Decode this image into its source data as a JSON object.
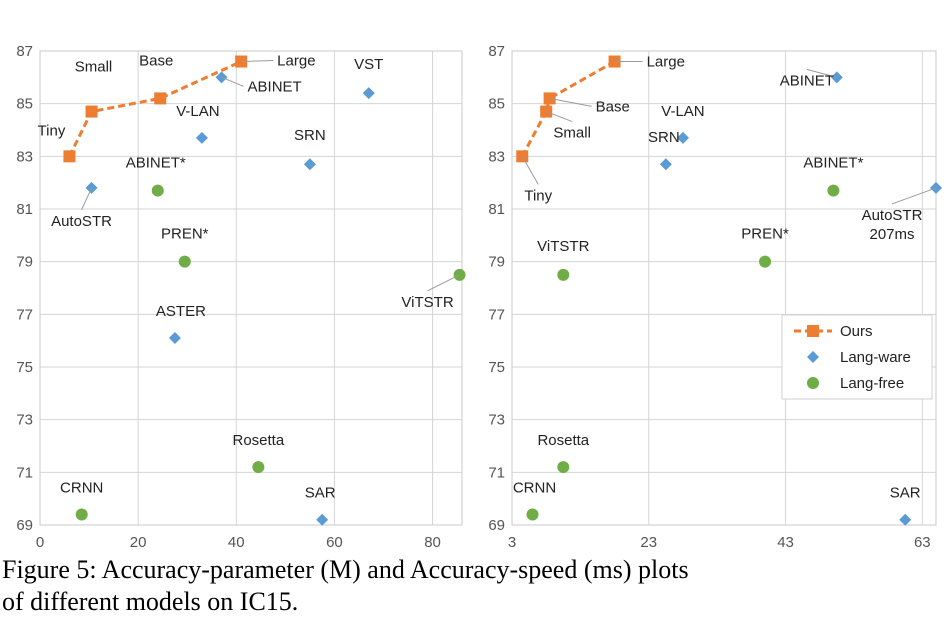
{
  "colors": {
    "ours": "#ED7D31",
    "lang_aware": "#5B9BD5",
    "lang_free": "#70AD47"
  },
  "chart_data": [
    {
      "type": "scatter",
      "title": "Accuracy-parameter (M)",
      "xlabel": "",
      "ylabel": "",
      "xlim": [
        0,
        86
      ],
      "ylim": [
        69,
        87
      ],
      "xticks": [
        0,
        20,
        40,
        60,
        80
      ],
      "yticks": [
        69,
        71,
        73,
        75,
        77,
        79,
        81,
        83,
        85,
        87
      ],
      "series": [
        {
          "name": "Ours",
          "marker": "square",
          "line": true,
          "points": [
            {
              "x": 6,
              "y": 83.0,
              "label": "Tiny"
            },
            {
              "x": 10.5,
              "y": 84.7,
              "label": "Small"
            },
            {
              "x": 24.5,
              "y": 85.2,
              "label": "Base"
            },
            {
              "x": 41,
              "y": 86.6,
              "label": "Large"
            }
          ]
        },
        {
          "name": "Lang-ware",
          "marker": "diamond",
          "line": false,
          "points": [
            {
              "x": 10.5,
              "y": 81.8,
              "label": "AutoSTR"
            },
            {
              "x": 37,
              "y": 86.0,
              "label": "ABINET"
            },
            {
              "x": 33,
              "y": 83.7,
              "label": "V-LAN"
            },
            {
              "x": 55,
              "y": 82.7,
              "label": "SRN"
            },
            {
              "x": 67,
              "y": 85.4,
              "label": "VST"
            },
            {
              "x": 27.5,
              "y": 76.1,
              "label": "ASTER"
            },
            {
              "x": 57.5,
              "y": 69.2,
              "label": "SAR"
            }
          ]
        },
        {
          "name": "Lang-free",
          "marker": "circle",
          "line": false,
          "points": [
            {
              "x": 24,
              "y": 81.7,
              "label": "ABINET*"
            },
            {
              "x": 29.5,
              "y": 79.0,
              "label": "PREN*"
            },
            {
              "x": 85.5,
              "y": 78.5,
              "label": "ViTSTR"
            },
            {
              "x": 44.5,
              "y": 71.2,
              "label": "Rosetta"
            },
            {
              "x": 8.5,
              "y": 69.4,
              "label": "CRNN"
            }
          ]
        }
      ]
    },
    {
      "type": "scatter",
      "title": "Accuracy-speed (ms)",
      "xlabel": "",
      "ylabel": "",
      "xlim": [
        3,
        65
      ],
      "ylim": [
        69,
        87
      ],
      "xticks": [
        3,
        23,
        43,
        63
      ],
      "yticks": [
        69,
        71,
        73,
        75,
        77,
        79,
        81,
        83,
        85,
        87
      ],
      "legend": {
        "position": "right",
        "entries": [
          "Ours",
          "Lang-ware",
          "Lang-free"
        ]
      },
      "series": [
        {
          "name": "Ours",
          "marker": "square",
          "line": true,
          "points": [
            {
              "x": 4.5,
              "y": 83.0,
              "label": "Tiny"
            },
            {
              "x": 8,
              "y": 84.7,
              "label": "Small"
            },
            {
              "x": 8.5,
              "y": 85.2,
              "label": "Base"
            },
            {
              "x": 18,
              "y": 86.6,
              "label": "Large"
            }
          ]
        },
        {
          "name": "Lang-ware",
          "marker": "diamond",
          "line": false,
          "points": [
            {
              "x": 50.5,
              "y": 86.0,
              "label": "ABINET"
            },
            {
              "x": 28,
              "y": 83.7,
              "label": "V-LAN"
            },
            {
              "x": 25.5,
              "y": 82.7,
              "label": "SRN"
            },
            {
              "x": 65,
              "y": 81.8,
              "label": "AutoSTR\n207ms"
            },
            {
              "x": 60.5,
              "y": 69.2,
              "label": "SAR"
            }
          ]
        },
        {
          "name": "Lang-free",
          "marker": "circle",
          "line": false,
          "points": [
            {
              "x": 50,
              "y": 81.7,
              "label": "ABINET*"
            },
            {
              "x": 40,
              "y": 79.0,
              "label": "PREN*"
            },
            {
              "x": 10.5,
              "y": 78.5,
              "label": "ViTSTR"
            },
            {
              "x": 10.5,
              "y": 71.2,
              "label": "Rosetta"
            },
            {
              "x": 6,
              "y": 69.4,
              "label": "CRNN"
            }
          ]
        }
      ]
    }
  ],
  "caption": "Figure 5: Accuracy-parameter (M) and Accuracy-speed (ms) plots\nof different models on IC15."
}
